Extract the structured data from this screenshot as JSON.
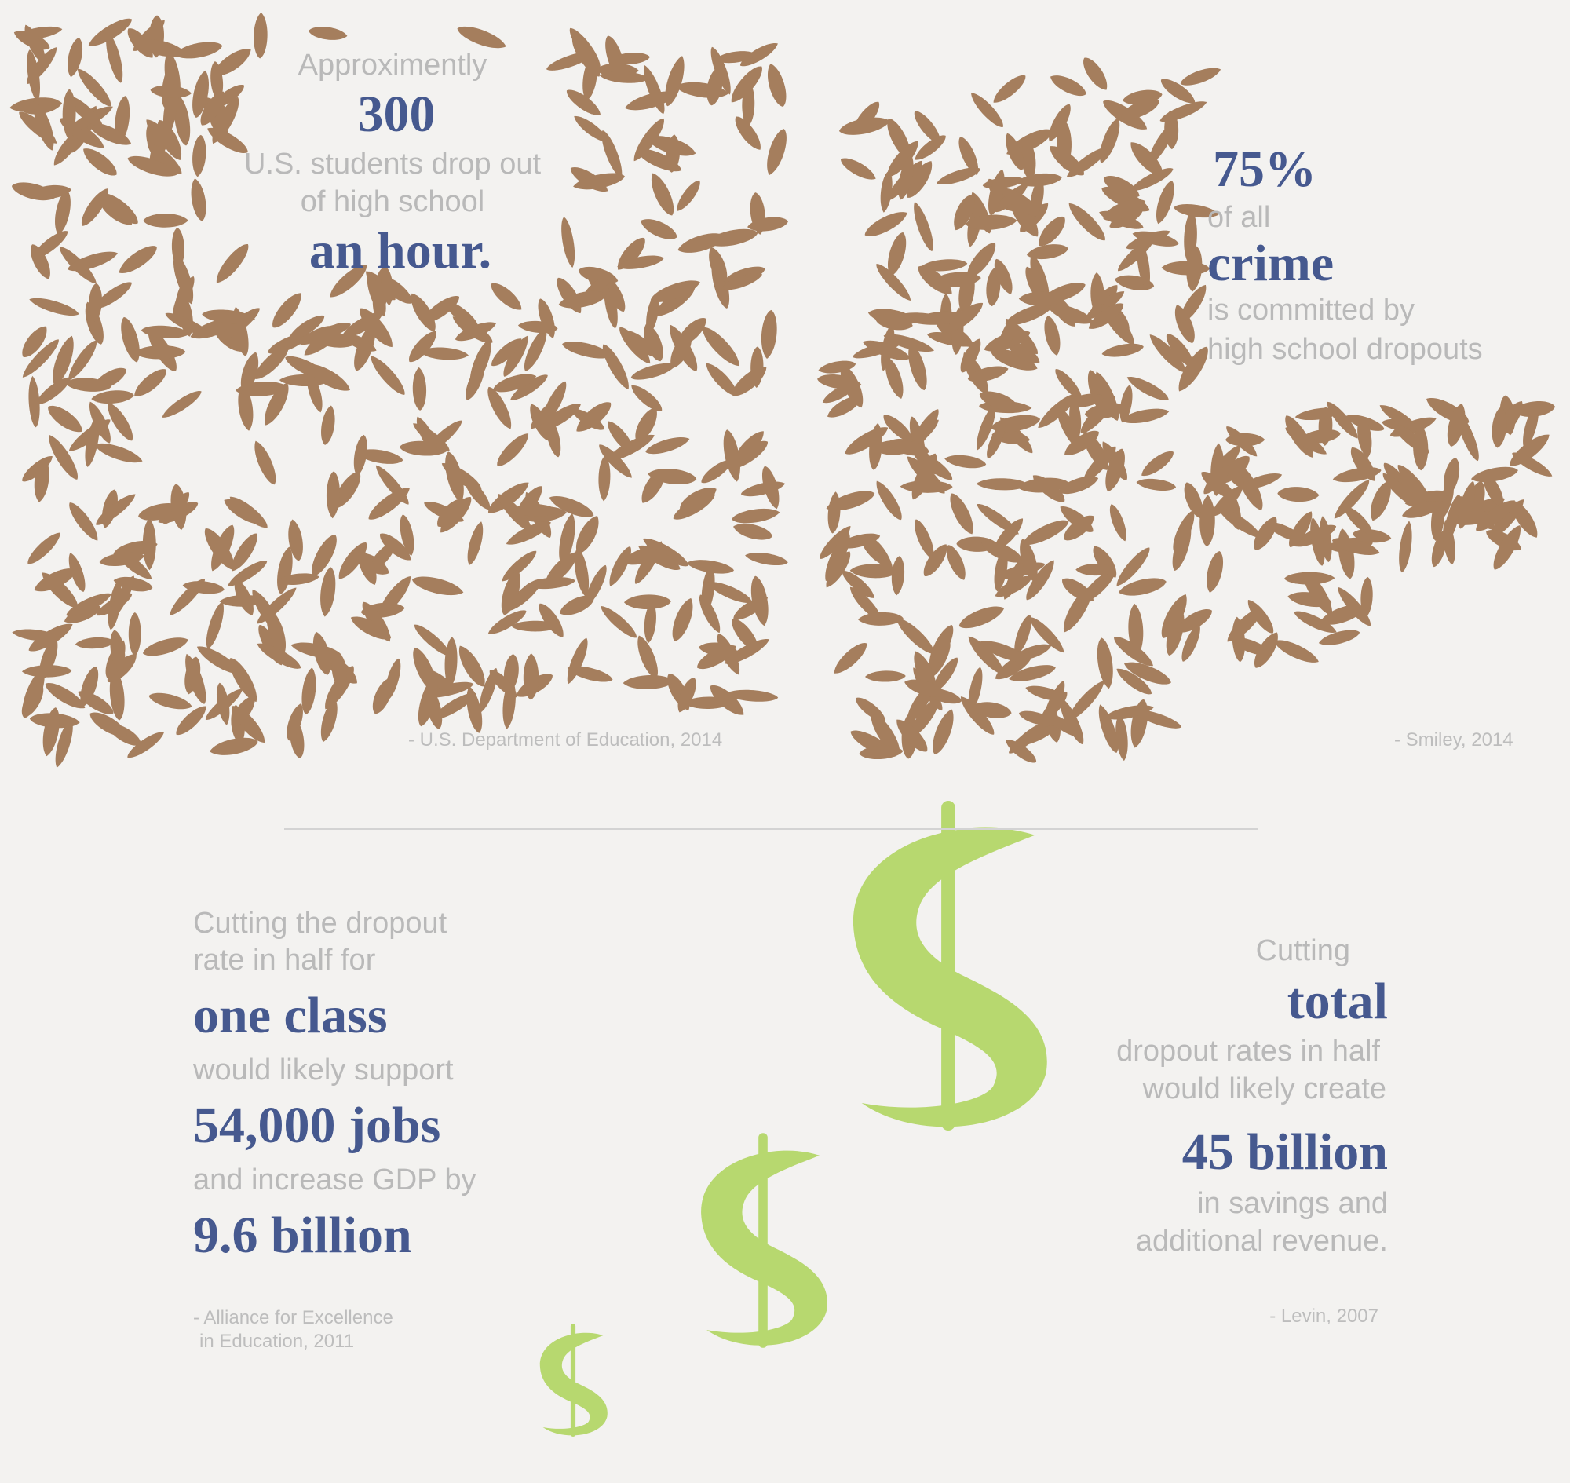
{
  "colors": {
    "background": "#f3f2f0",
    "seed": "#a57e5d",
    "dollar": "#b7d86f",
    "heading": "#46598f",
    "muted": "#b9b9b9"
  },
  "icons": [
    "seed-shape",
    "dollar-sign-icon"
  ],
  "stat1": {
    "prefix": "Approximently",
    "number": "300",
    "line1": "U.S. students drop out",
    "line2": "of high school",
    "emphasis": "an hour.",
    "source": "- U.S. Department of Education, 2014"
  },
  "stat2": {
    "number": "75%",
    "line1": "of all",
    "emphasis": "crime",
    "line2": "is committed by",
    "line3": "high school dropouts",
    "source": "- Smiley, 2014"
  },
  "stat3": {
    "line1": "Cutting the dropout",
    "line2": "rate in half for",
    "emphasis1": "one class",
    "line3": "would likely support",
    "emphasis2": "54,000 jobs",
    "line4": "and increase GDP by",
    "emphasis3": "9.6 billion",
    "source1": "- Alliance for Excellence",
    "source2": "in Education, 2011"
  },
  "stat4": {
    "line1": "Cutting",
    "emphasis1": "total",
    "line2": "dropout rates in half",
    "line3": "would likely create",
    "emphasis2": "45 billion",
    "line4": "in savings and",
    "line5": "additional revenue.",
    "source": "- Levin, 2007"
  }
}
